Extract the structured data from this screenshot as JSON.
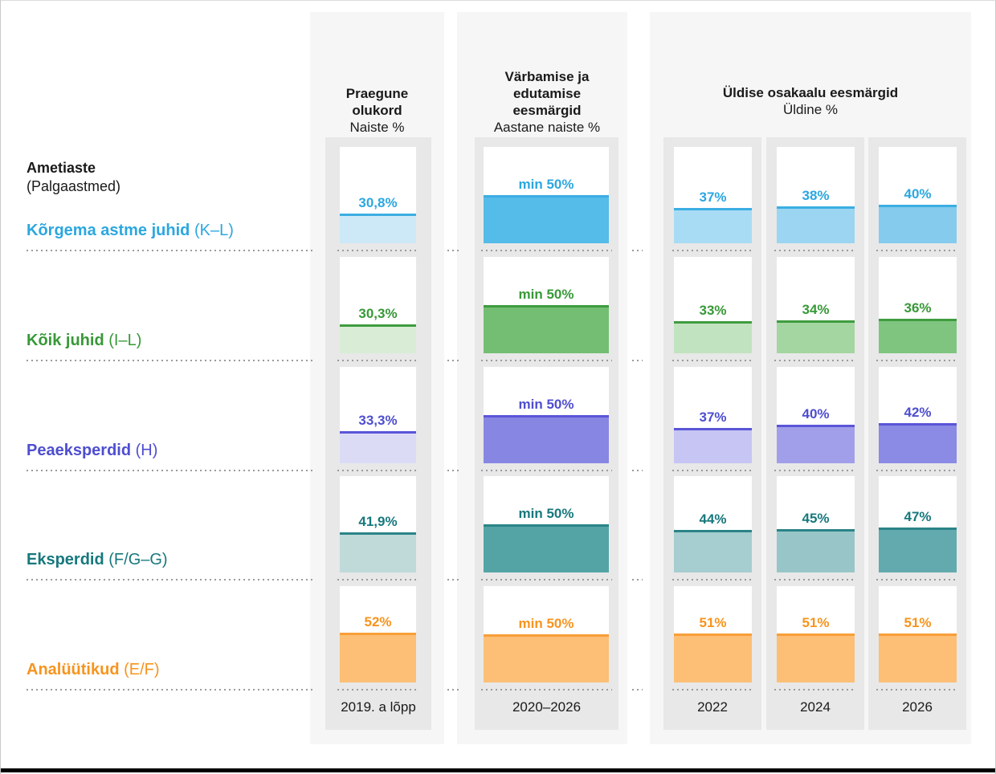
{
  "intro": {
    "title": "Ametiaste",
    "subtitle": "(Palgaastmed)"
  },
  "columns": {
    "current": {
      "title": "Praegune olukord",
      "subtitle": "Naiste %",
      "footer": "2019. a lõpp"
    },
    "target": {
      "title": "Värbamise ja edutamise eesmärgid",
      "subtitle": "Aastane naiste %",
      "footer": "2020–2026"
    },
    "overall": {
      "title": "Üldise osakaalu eesmärgid",
      "subtitle": "Üldine %",
      "years": [
        "2022",
        "2024",
        "2026"
      ]
    }
  },
  "rows": [
    {
      "name": "Kõrgema astme juhid",
      "grades": "(K–L)",
      "text_color": "#2BA7E0",
      "border_color": "#3CAEE3",
      "cells": {
        "current": {
          "label": "30,8%",
          "value": 30.8,
          "fill": "#CDE9F7"
        },
        "target": {
          "label": "min 50%",
          "value": 50,
          "fill": "#55BBE8"
        },
        "years": [
          {
            "label": "37%",
            "value": 37,
            "fill": "#A8DCF4"
          },
          {
            "label": "38%",
            "value": 38,
            "fill": "#9BD5F1"
          },
          {
            "label": "40%",
            "value": 40,
            "fill": "#84CBEE"
          }
        ]
      }
    },
    {
      "name": "Kõik juhid",
      "grades": "(I–L)",
      "text_color": "#379937",
      "border_color": "#3F9C3F",
      "cells": {
        "current": {
          "label": "30,3%",
          "value": 30.3,
          "fill": "#D9EDD6"
        },
        "target": {
          "label": "min 50%",
          "value": 50,
          "fill": "#74BE74"
        },
        "years": [
          {
            "label": "33%",
            "value": 33,
            "fill": "#C2E3BF"
          },
          {
            "label": "34%",
            "value": 34,
            "fill": "#A4D6A1"
          },
          {
            "label": "36%",
            "value": 36,
            "fill": "#7FC580"
          }
        ]
      }
    },
    {
      "name": "Peaeksperdid",
      "grades": "(H)",
      "text_color": "#4E4ED0",
      "border_color": "#5A55D8",
      "cells": {
        "current": {
          "label": "33,3%",
          "value": 33.3,
          "fill": "#DCDBF6"
        },
        "target": {
          "label": "min 50%",
          "value": 50,
          "fill": "#8886E3"
        },
        "years": [
          {
            "label": "37%",
            "value": 37,
            "fill": "#C6C5F3"
          },
          {
            "label": "40%",
            "value": 40,
            "fill": "#A19FE9"
          },
          {
            "label": "42%",
            "value": 42,
            "fill": "#8B8AE4"
          }
        ]
      }
    },
    {
      "name": "Eksperdid",
      "grades": "(F/G–G)",
      "text_color": "#17787D",
      "border_color": "#2B8487",
      "cells": {
        "current": {
          "label": "41,9%",
          "value": 41.9,
          "fill": "#C0DADA"
        },
        "target": {
          "label": "min 50%",
          "value": 50,
          "fill": "#54A4A6"
        },
        "years": [
          {
            "label": "44%",
            "value": 44,
            "fill": "#A6CDCF"
          },
          {
            "label": "45%",
            "value": 45,
            "fill": "#98C6C8"
          },
          {
            "label": "47%",
            "value": 47,
            "fill": "#62AAAD"
          }
        ]
      }
    },
    {
      "name": "Analüütikud",
      "grades": "(E/F)",
      "text_color": "#F7941E",
      "border_color": "#F89E39",
      "cells": {
        "current": {
          "label": "52%",
          "value": 52,
          "fill": "#FCBF75"
        },
        "target": {
          "label": "min 50%",
          "value": 50,
          "fill": "#FCBF75"
        },
        "years": [
          {
            "label": "51%",
            "value": 51,
            "fill": "#FCBF75"
          },
          {
            "label": "51%",
            "value": 51,
            "fill": "#FCBF75"
          },
          {
            "label": "51%",
            "value": 51,
            "fill": "#FCBF75"
          }
        ]
      }
    }
  ],
  "chart_data": {
    "type": "bar",
    "unit": "%",
    "ylim": [
      0,
      100
    ],
    "columns": [
      "Praegune olukord — Naiste % (2019. a lõpp)",
      "Värbamise ja edutamise eesmärgid — Aastane naiste % (2020–2026)",
      "Üldise osakaalu eesmärgid — Üldine % 2022",
      "Üldise osakaalu eesmärgid — Üldine % 2024",
      "Üldise osakaalu eesmärgid — Üldine % 2026"
    ],
    "categories": [
      "Kõrgema astme juhid (K–L)",
      "Kõik juhid (I–L)",
      "Peaeksperdid (H)",
      "Eksperdid (F/G–G)",
      "Analüütikud (E/F)"
    ],
    "series": [
      {
        "name": "Kõrgema astme juhid (K–L)",
        "values": [
          30.8,
          50,
          37,
          38,
          40
        ],
        "value_labels": [
          "30,8%",
          "min 50%",
          "37%",
          "38%",
          "40%"
        ]
      },
      {
        "name": "Kõik juhid (I–L)",
        "values": [
          30.3,
          50,
          33,
          34,
          36
        ],
        "value_labels": [
          "30,3%",
          "min 50%",
          "33%",
          "34%",
          "36%"
        ]
      },
      {
        "name": "Peaeksperdid (H)",
        "values": [
          33.3,
          50,
          37,
          40,
          42
        ],
        "value_labels": [
          "33,3%",
          "min 50%",
          "37%",
          "40%",
          "42%"
        ]
      },
      {
        "name": "Eksperdid (F/G–G)",
        "values": [
          41.9,
          50,
          44,
          45,
          47
        ],
        "value_labels": [
          "41,9%",
          "min 50%",
          "44%",
          "45%",
          "47%"
        ]
      },
      {
        "name": "Analüütikud (E/F)",
        "values": [
          52,
          50,
          51,
          51,
          51
        ],
        "value_labels": [
          "52%",
          "min 50%",
          "51%",
          "51%",
          "51%"
        ]
      }
    ],
    "legend_position": "none",
    "grid": false
  }
}
